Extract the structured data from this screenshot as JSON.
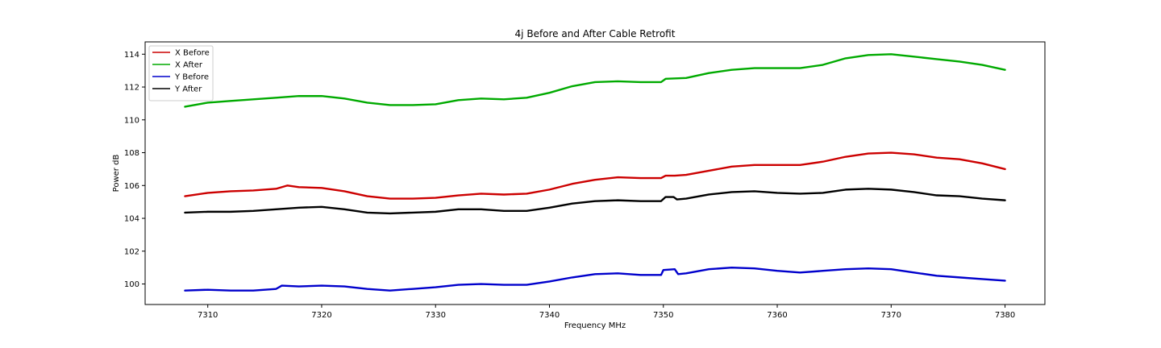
{
  "chart_data": {
    "type": "line",
    "title": "4j Before and After Cable Retrofit",
    "xlabel": "Frequency MHz",
    "ylabel": "Power dB",
    "xlim": [
      7304.5,
      7383.5
    ],
    "ylim": [
      98.75,
      114.75
    ],
    "xticks": [
      7310,
      7320,
      7330,
      7340,
      7350,
      7360,
      7370,
      7380
    ],
    "yticks": [
      100,
      102,
      104,
      106,
      108,
      110,
      112,
      114
    ],
    "grid": false,
    "legend_position": "top-left",
    "series": [
      {
        "name": "X Before",
        "color": "#cc0000",
        "points": [
          [
            7308,
            105.35
          ],
          [
            7310,
            105.55
          ],
          [
            7312,
            105.65
          ],
          [
            7314,
            105.7
          ],
          [
            7316,
            105.8
          ],
          [
            7317,
            106.0
          ],
          [
            7318,
            105.9
          ],
          [
            7320,
            105.85
          ],
          [
            7322,
            105.65
          ],
          [
            7324,
            105.35
          ],
          [
            7326,
            105.2
          ],
          [
            7328,
            105.2
          ],
          [
            7330,
            105.25
          ],
          [
            7332,
            105.4
          ],
          [
            7334,
            105.5
          ],
          [
            7336,
            105.45
          ],
          [
            7338,
            105.5
          ],
          [
            7340,
            105.75
          ],
          [
            7342,
            106.1
          ],
          [
            7344,
            106.35
          ],
          [
            7346,
            106.5
          ],
          [
            7348,
            106.45
          ],
          [
            7349.8,
            106.45
          ],
          [
            7350.2,
            106.6
          ],
          [
            7351,
            106.6
          ],
          [
            7352,
            106.65
          ],
          [
            7354,
            106.9
          ],
          [
            7356,
            107.15
          ],
          [
            7358,
            107.25
          ],
          [
            7360,
            107.25
          ],
          [
            7362,
            107.25
          ],
          [
            7364,
            107.45
          ],
          [
            7366,
            107.75
          ],
          [
            7368,
            107.95
          ],
          [
            7370,
            108.0
          ],
          [
            7372,
            107.9
          ],
          [
            7374,
            107.7
          ],
          [
            7376,
            107.6
          ],
          [
            7378,
            107.35
          ],
          [
            7380,
            107.0
          ]
        ]
      },
      {
        "name": "X After",
        "color": "#00aa00",
        "points": [
          [
            7308,
            110.8
          ],
          [
            7310,
            111.05
          ],
          [
            7312,
            111.15
          ],
          [
            7314,
            111.25
          ],
          [
            7316,
            111.35
          ],
          [
            7318,
            111.45
          ],
          [
            7320,
            111.45
          ],
          [
            7322,
            111.3
          ],
          [
            7324,
            111.05
          ],
          [
            7326,
            110.9
          ],
          [
            7328,
            110.9
          ],
          [
            7330,
            110.95
          ],
          [
            7332,
            111.2
          ],
          [
            7334,
            111.3
          ],
          [
            7336,
            111.25
          ],
          [
            7338,
            111.35
          ],
          [
            7340,
            111.65
          ],
          [
            7342,
            112.05
          ],
          [
            7344,
            112.3
          ],
          [
            7346,
            112.35
          ],
          [
            7348,
            112.3
          ],
          [
            7349.8,
            112.3
          ],
          [
            7350.2,
            112.5
          ],
          [
            7352,
            112.55
          ],
          [
            7354,
            112.85
          ],
          [
            7356,
            113.05
          ],
          [
            7358,
            113.15
          ],
          [
            7360,
            113.15
          ],
          [
            7362,
            113.15
          ],
          [
            7364,
            113.35
          ],
          [
            7366,
            113.75
          ],
          [
            7368,
            113.95
          ],
          [
            7370,
            114.0
          ],
          [
            7372,
            113.85
          ],
          [
            7374,
            113.7
          ],
          [
            7376,
            113.55
          ],
          [
            7378,
            113.35
          ],
          [
            7380,
            113.05
          ]
        ]
      },
      {
        "name": "Y Before",
        "color": "#0000cc",
        "points": [
          [
            7308,
            99.6
          ],
          [
            7310,
            99.65
          ],
          [
            7312,
            99.6
          ],
          [
            7314,
            99.6
          ],
          [
            7316,
            99.7
          ],
          [
            7316.5,
            99.9
          ],
          [
            7318,
            99.85
          ],
          [
            7320,
            99.9
          ],
          [
            7322,
            99.85
          ],
          [
            7324,
            99.7
          ],
          [
            7326,
            99.6
          ],
          [
            7328,
            99.7
          ],
          [
            7330,
            99.8
          ],
          [
            7332,
            99.95
          ],
          [
            7334,
            100.0
          ],
          [
            7336,
            99.95
          ],
          [
            7338,
            99.95
          ],
          [
            7340,
            100.15
          ],
          [
            7342,
            100.4
          ],
          [
            7344,
            100.6
          ],
          [
            7346,
            100.65
          ],
          [
            7348,
            100.55
          ],
          [
            7349.8,
            100.55
          ],
          [
            7350,
            100.85
          ],
          [
            7351,
            100.9
          ],
          [
            7351.3,
            100.6
          ],
          [
            7352,
            100.65
          ],
          [
            7354,
            100.9
          ],
          [
            7356,
            101.0
          ],
          [
            7358,
            100.95
          ],
          [
            7360,
            100.8
          ],
          [
            7362,
            100.7
          ],
          [
            7364,
            100.8
          ],
          [
            7366,
            100.9
          ],
          [
            7368,
            100.95
          ],
          [
            7370,
            100.9
          ],
          [
            7372,
            100.7
          ],
          [
            7374,
            100.5
          ],
          [
            7376,
            100.4
          ],
          [
            7378,
            100.3
          ],
          [
            7380,
            100.2
          ]
        ]
      },
      {
        "name": "Y After",
        "color": "#000000",
        "points": [
          [
            7308,
            104.35
          ],
          [
            7310,
            104.4
          ],
          [
            7312,
            104.4
          ],
          [
            7314,
            104.45
          ],
          [
            7316,
            104.55
          ],
          [
            7318,
            104.65
          ],
          [
            7320,
            104.7
          ],
          [
            7322,
            104.55
          ],
          [
            7324,
            104.35
          ],
          [
            7326,
            104.3
          ],
          [
            7328,
            104.35
          ],
          [
            7330,
            104.4
          ],
          [
            7332,
            104.55
          ],
          [
            7334,
            104.55
          ],
          [
            7336,
            104.45
          ],
          [
            7338,
            104.45
          ],
          [
            7340,
            104.65
          ],
          [
            7342,
            104.9
          ],
          [
            7344,
            105.05
          ],
          [
            7346,
            105.1
          ],
          [
            7348,
            105.05
          ],
          [
            7349.8,
            105.05
          ],
          [
            7350.2,
            105.3
          ],
          [
            7350.9,
            105.3
          ],
          [
            7351.2,
            105.15
          ],
          [
            7352,
            105.2
          ],
          [
            7354,
            105.45
          ],
          [
            7356,
            105.6
          ],
          [
            7358,
            105.65
          ],
          [
            7360,
            105.55
          ],
          [
            7362,
            105.5
          ],
          [
            7364,
            105.55
          ],
          [
            7366,
            105.75
          ],
          [
            7368,
            105.8
          ],
          [
            7370,
            105.75
          ],
          [
            7372,
            105.6
          ],
          [
            7374,
            105.4
          ],
          [
            7376,
            105.35
          ],
          [
            7378,
            105.2
          ],
          [
            7380,
            105.1
          ]
        ]
      }
    ]
  }
}
